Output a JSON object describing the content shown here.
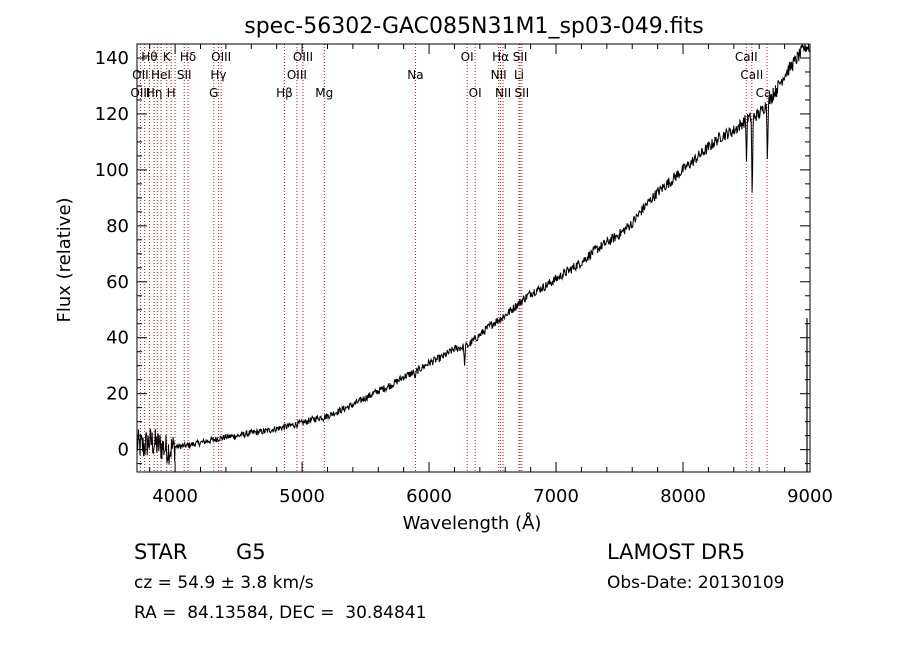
{
  "chart_data": {
    "type": "line",
    "title": "spec-56302-GAC085N31M1_sp03-049.fits",
    "xlabel": "Wavelength (Å)",
    "ylabel": "Flux (relative)",
    "xlim": [
      3700,
      9000
    ],
    "ylim": [
      -8,
      145
    ],
    "x_ticks": [
      4000,
      5000,
      6000,
      7000,
      8000,
      9000
    ],
    "y_ticks": [
      0,
      20,
      40,
      60,
      80,
      100,
      120,
      140
    ],
    "grid": false,
    "series": [
      {
        "x": [
          3700,
          3750,
          3800,
          3850,
          3900,
          3950,
          4000,
          4100,
          4200,
          4300,
          4400,
          4500,
          4600,
          4700,
          4800,
          4900,
          5000,
          5100,
          5200,
          5300,
          5400,
          5500,
          5600,
          5700,
          5800,
          5900,
          6000,
          6100,
          6200,
          6300,
          6400,
          6500,
          6600,
          6700,
          6800,
          6900,
          7000,
          7100,
          7200,
          7300,
          7400,
          7500,
          7600,
          7700,
          7800,
          7900,
          8000,
          8100,
          8200,
          8300,
          8400,
          8500,
          8600,
          8700,
          8800,
          8900,
          8960,
          9000
        ],
        "y": [
          2,
          1,
          3,
          2,
          1,
          0,
          1,
          1.5,
          2.5,
          3.5,
          4.5,
          5,
          6,
          6.5,
          7.5,
          8.5,
          9.5,
          11,
          12,
          14,
          16,
          18.5,
          21,
          23,
          26,
          28,
          31,
          33,
          36,
          37,
          41,
          45,
          48,
          52,
          56,
          58,
          61,
          64,
          67,
          71,
          74,
          77,
          81,
          87,
          92,
          96,
          100,
          104,
          108,
          112,
          114,
          118,
          120,
          126,
          134,
          140,
          144,
          144
        ]
      }
    ],
    "absorption_dips": [
      {
        "x": 5168,
        "y": 10
      },
      {
        "x": 5890,
        "y": 25
      },
      {
        "x": 6280,
        "y": 30
      },
      {
        "x": 7600,
        "y": 80
      },
      {
        "x": 7900,
        "y": 94
      },
      {
        "x": 8500,
        "y": 103
      },
      {
        "x": 8545,
        "y": 88
      },
      {
        "x": 8665,
        "y": 101
      }
    ],
    "noise_region": [
      3700,
      4000
    ],
    "line_markers": [
      {
        "label": "Hθ",
        "x": 3798,
        "row": 0
      },
      {
        "label": "K",
        "x": 3934,
        "row": 0
      },
      {
        "label": "Hδ",
        "x": 4102,
        "row": 0
      },
      {
        "label": "OIII",
        "x": 4363,
        "row": 0
      },
      {
        "label": "OIII",
        "x": 5007,
        "row": 0
      },
      {
        "label": "OI",
        "x": 6300,
        "row": 0
      },
      {
        "label": "Hα",
        "x": 6563,
        "row": 0
      },
      {
        "label": "SII",
        "x": 6717,
        "row": 0
      },
      {
        "label": "CaII",
        "x": 8498,
        "row": 0
      },
      {
        "label": "OII",
        "x": 3727,
        "row": 1
      },
      {
        "label": "HeI",
        "x": 3889,
        "row": 1
      },
      {
        "label": "SII",
        "x": 4072,
        "row": 1
      },
      {
        "label": "Hγ",
        "x": 4341,
        "row": 1
      },
      {
        "label": "OIII",
        "x": 4959,
        "row": 1
      },
      {
        "label": "NII",
        "x": 6548,
        "row": 1
      },
      {
        "label": "Li",
        "x": 6708,
        "row": 1
      },
      {
        "label": "CaII",
        "x": 8542,
        "row": 1
      },
      {
        "label": "OIII",
        "x": 3727,
        "row": 2
      },
      {
        "label": "Hη",
        "x": 3835,
        "row": 2
      },
      {
        "label": "H",
        "x": 3969,
        "row": 2
      },
      {
        "label": "G",
        "x": 4305,
        "row": 2
      },
      {
        "label": "Hβ",
        "x": 4861,
        "row": 2
      },
      {
        "label": "Mg",
        "x": 5175,
        "row": 2
      },
      {
        "label": "Na",
        "x": 5893,
        "row": 1
      },
      {
        "label": "OI",
        "x": 6363,
        "row": 2
      },
      {
        "label": "NII",
        "x": 6583,
        "row": 2
      },
      {
        "label": "SII",
        "x": 6731,
        "row": 2
      },
      {
        "label": "CaII",
        "x": 8662,
        "row": 2
      }
    ],
    "extra_marker_lines": [
      3760,
      3860,
      3890,
      4000
    ]
  },
  "info": {
    "object_class": "STAR",
    "subclass": "G5",
    "survey": "LAMOST DR5",
    "redshift": "cz = 54.9 ± 3.8 km/s",
    "obs_date": "Obs-Date: 20130109",
    "coords": "RA =  84.13584, DEC =  30.84841"
  }
}
